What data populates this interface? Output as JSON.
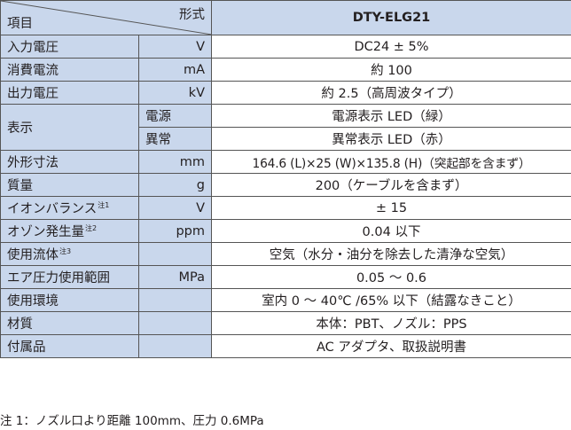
{
  "header": {
    "type_label": "形式",
    "item_label": "項目",
    "model": "DTY-ELG21"
  },
  "rows": [
    {
      "label": "入力電圧",
      "unit": "V",
      "value": "DC24 ± 5%"
    },
    {
      "label": "消費電流",
      "unit": "mA",
      "value": "約 100"
    },
    {
      "label": "出力電圧",
      "unit": "kV",
      "value": "約 2.5（高周波タイプ）"
    },
    {
      "label": "表示",
      "sub": [
        {
          "label": "電源",
          "value": "電源表示 LED（緑）"
        },
        {
          "label": "異常",
          "value": "異常表示 LED（赤）"
        }
      ]
    },
    {
      "label": "外形寸法",
      "unit": "mm",
      "value": "164.6 (L)×25 (W)×135.8 (H)（突起部を含まず）"
    },
    {
      "label": "質量",
      "unit": "g",
      "value": "200（ケーブルを含まず）"
    },
    {
      "label": "イオンバランス",
      "note": "注1",
      "unit": "V",
      "value": "± 15"
    },
    {
      "label": "オゾン発生量",
      "note": "注2",
      "unit": "ppm",
      "value": "0.04 以下"
    },
    {
      "label": "使用流体",
      "note": "注3",
      "unit": "",
      "value": "空気（水分・油分を除去した清浄な空気）"
    },
    {
      "label": "エア圧力使用範囲",
      "unit": "MPa",
      "value": "0.05 ～ 0.6"
    },
    {
      "label": "使用環境",
      "unit": "",
      "value": "室内 0 ～ 40℃ /65% 以下（結露なきこと）"
    },
    {
      "label": "材質",
      "unit": "",
      "value": "本体：PBT、ノズル：PPS"
    },
    {
      "label": "付属品",
      "unit": "",
      "value": "AC アダプタ、取扱説明書"
    }
  ],
  "footnote": "注 1：ノズル口より距離 100mm、圧力 0.6MPa"
}
